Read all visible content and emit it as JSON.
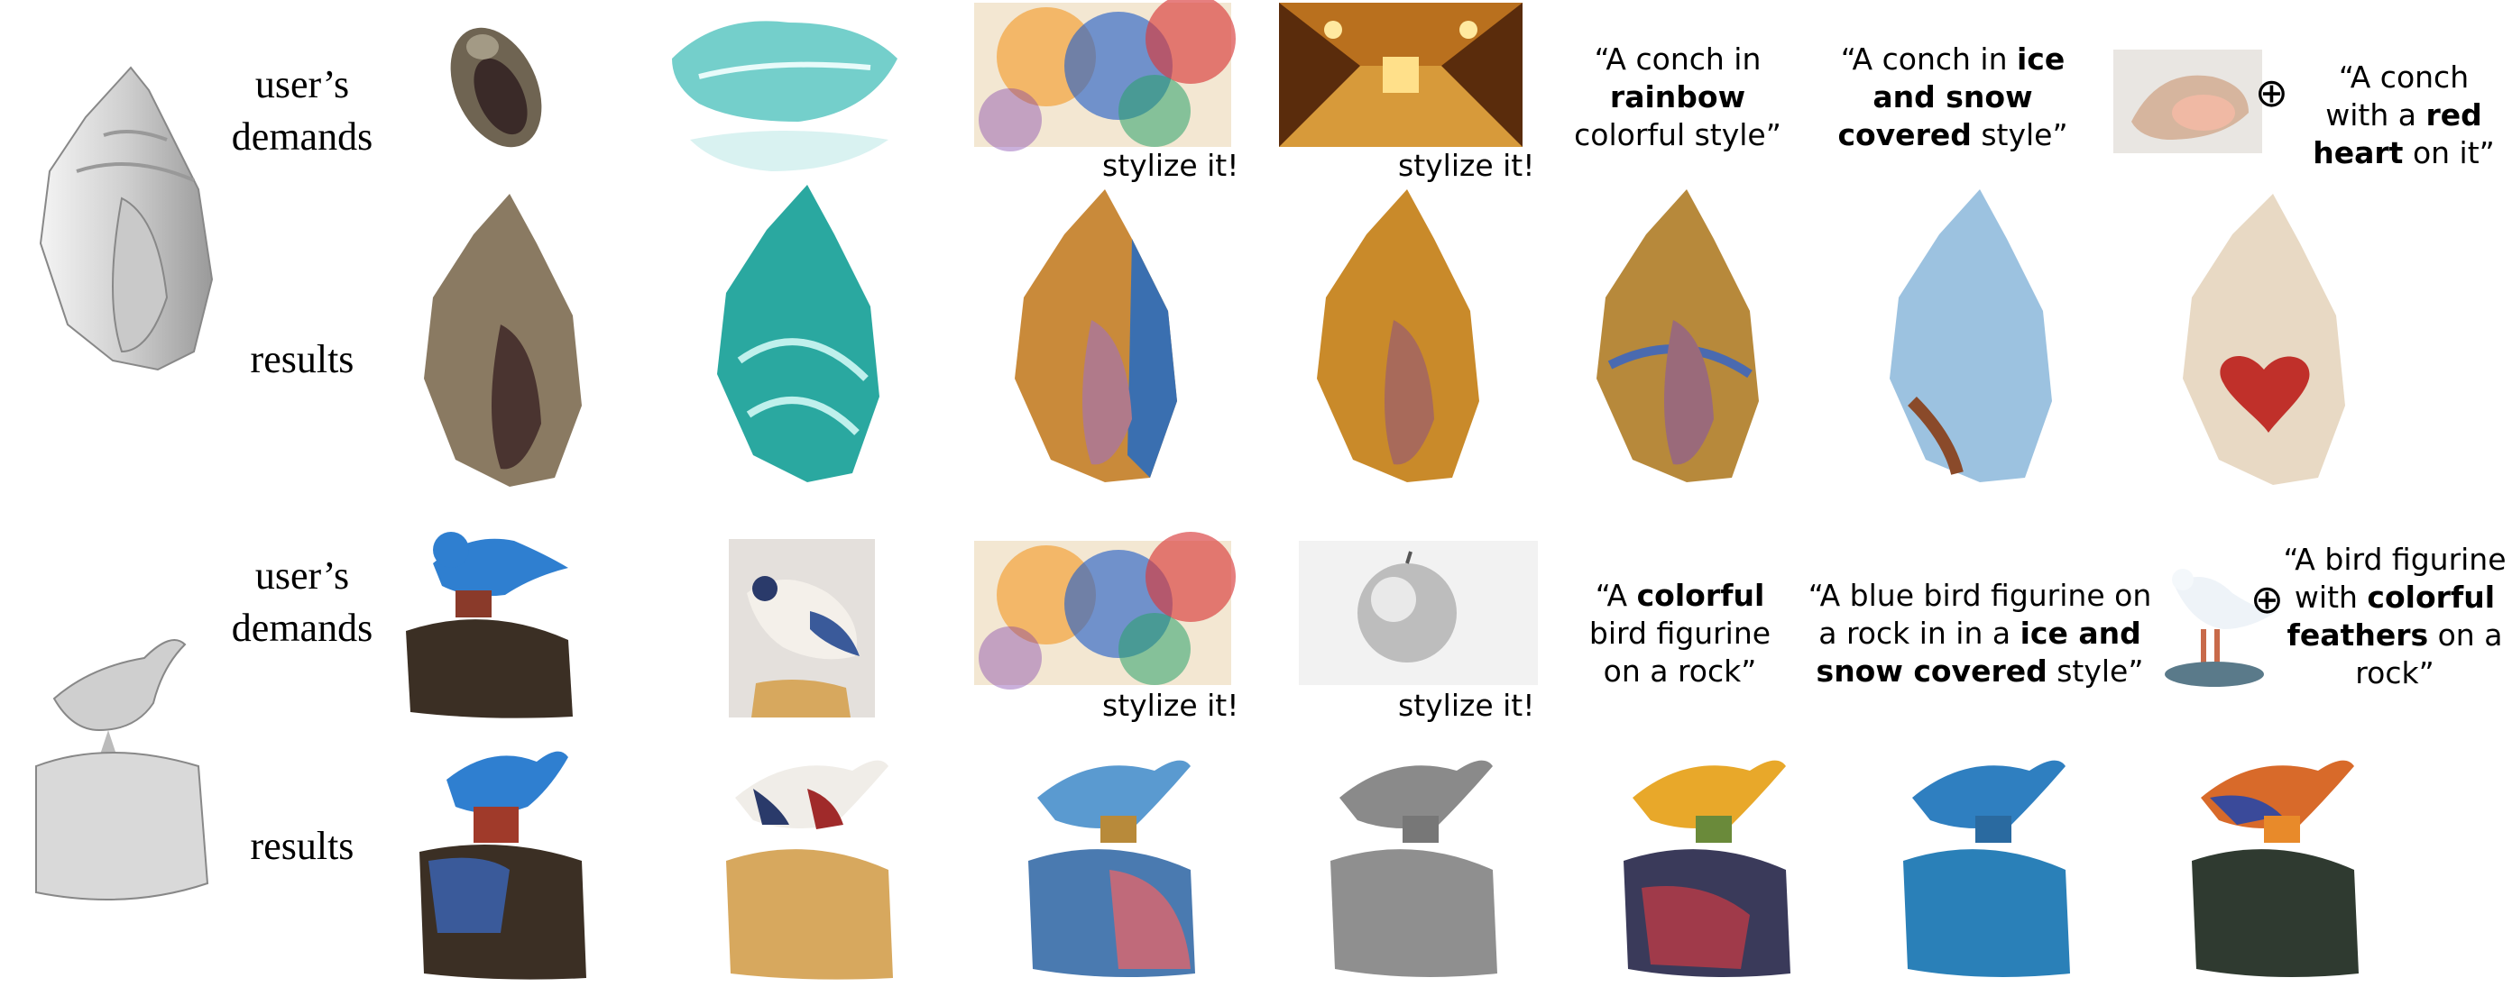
{
  "figure": {
    "row_labels": {
      "demands": "user’s\ndemands",
      "results": "results"
    },
    "stylize_label": "stylize it!",
    "oplus_symbol": "⊕",
    "rows": [
      {
        "subject": "conch",
        "prompts": {
          "p5": {
            "t1": "“A conch in ",
            "t2": "rainbow",
            "t3": " colorful style”"
          },
          "p6": {
            "t1": "“A conch in ",
            "t2": "ice and snow covered",
            "t3": " style”"
          },
          "p7": {
            "t1": "“A conch with a ",
            "t2": "red heart",
            "t3": " on it”"
          }
        }
      },
      {
        "subject": "bird",
        "prompts": {
          "p5": {
            "t1": "“A ",
            "t2": "colorful",
            "t3": " bird figurine on a rock”"
          },
          "p6": {
            "t1": "“A blue bird figurine on a rock in in a ",
            "t2": "ice and snow covered",
            "t3": " style”"
          },
          "p7": {
            "t1": "“A bird figurine with ",
            "t2": "colorful feathers",
            "t3": " on a rock”"
          }
        }
      }
    ]
  },
  "colors": {
    "mesh": "#d9d9d9",
    "conch_natural": "#8a7a62",
    "conch_teal": "#2aa8a0",
    "conch_watercolor": "#3a6fb0",
    "conch_gold": "#c98a2a",
    "conch_rainbow": "#b7893b",
    "conch_ice": "#9cc2e0",
    "conch_heart_base": "#e8d9c4",
    "heart_red": "#c0302a",
    "bird_blue": "#2f7fd0",
    "rock_dark": "#3b2f24",
    "rock_tan": "#d7a85e",
    "gray": "#8a8a8a"
  }
}
